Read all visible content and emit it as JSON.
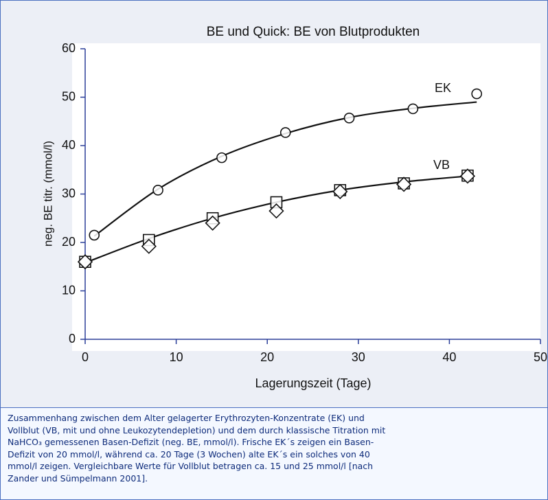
{
  "chart_data": {
    "type": "scatter-fit",
    "title": "BE und Quick: BE von Blutprodukten",
    "x_label": "Lagerungszeit (Tage)",
    "y_label": "neg. BE titr. (mmol/l)",
    "xlim": [
      0,
      50
    ],
    "xticks": [
      0,
      10,
      20,
      30,
      40,
      50
    ],
    "ylim": [
      0,
      60
    ],
    "yticks": [
      0,
      10,
      20,
      30,
      40,
      50,
      60
    ],
    "series": [
      {
        "name": "EK",
        "color": "#111111",
        "markers": [
          {
            "shape": "circle",
            "x": [
              1,
              8,
              15,
              22,
              29,
              36,
              43
            ],
            "values": [
              21.5,
              30.8,
              37.5,
              42.7,
              45.7,
              47.6,
              50.7
            ]
          }
        ],
        "curve_x": [
          1,
          8,
          15,
          22,
          29,
          36,
          43
        ],
        "curve": [
          21.3,
          31,
          37.8,
          42.5,
          45.8,
          47.7,
          49
        ]
      },
      {
        "name": "VB",
        "color": "#111111",
        "markers": [
          {
            "shape": "square",
            "x": [
              0,
              7,
              14,
              21,
              28,
              35,
              42
            ],
            "values": [
              16,
              20.5,
              25,
              28.3,
              30.8,
              32.2,
              33.8
            ]
          },
          {
            "shape": "diamond",
            "x": [
              0,
              7,
              14,
              21,
              28,
              35,
              42
            ],
            "values": [
              16,
              19.2,
              24,
              26.5,
              30.5,
              32,
              33.7
            ]
          }
        ],
        "curve_x": [
          0,
          7,
          14,
          21,
          28,
          35,
          42
        ],
        "curve": [
          15.8,
          20.8,
          25,
          28.3,
          30.8,
          32.5,
          33.7
        ]
      }
    ]
  },
  "caption": {
    "lines": [
      "Zusammenhang zwischen dem Alter gelagerter Erythrozyten-Konzentrate (EK) und",
      "Vollblut (VB, mit und ohne Leukozytendepletion) und dem durch klassische Titration mit",
      "NaHCO₃ gemessenen Basen-Defizit (neg. BE, mmol/l). Frische EK´s zeigen ein Basen-",
      "Defizit von 20 mmol/l, während ca. 20 Tage (3 Wochen) alte EK´s ein solches von 40",
      "mmol/l zeigen. Vergleichbare Werte für Vollblut betragen ca. 15 und 25 mmol/l [nach",
      "Zander und Sümpelmann 2001]."
    ]
  }
}
